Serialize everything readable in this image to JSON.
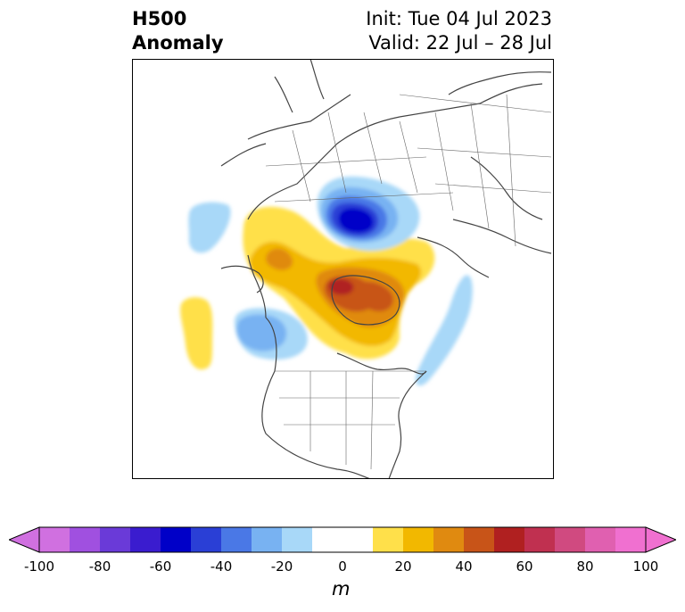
{
  "title": {
    "left_line1": "H500",
    "left_line2": "Anomaly",
    "right_line1": "Init: Tue 04 Jul 2023",
    "right_line2": "Valid: 22 Jul – 28 Jul"
  },
  "colorbar": {
    "unit": "m",
    "tick_labels": [
      "-100",
      "-80",
      "-60",
      "-40",
      "-20",
      "0",
      "20",
      "40",
      "60",
      "80",
      "100"
    ],
    "tick_values": [
      -100,
      -80,
      -60,
      -40,
      -20,
      0,
      20,
      40,
      60,
      80,
      100
    ],
    "extend": "both",
    "colors": [
      "#d070e0",
      "#a050e0",
      "#6a3ad8",
      "#3a1ccf",
      "#0000c8",
      "#2a3fd6",
      "#4a78e6",
      "#78b2f2",
      "#a8d8f8",
      "#ffffff",
      "#ffffff",
      "#ffe04a",
      "#f2b800",
      "#e08a10",
      "#c85418",
      "#b02020",
      "#c03050",
      "#d04a80",
      "#e060b0",
      "#f070d0"
    ],
    "extend_low_color": "#d070e0",
    "extend_high_color": "#f070d0"
  }
}
